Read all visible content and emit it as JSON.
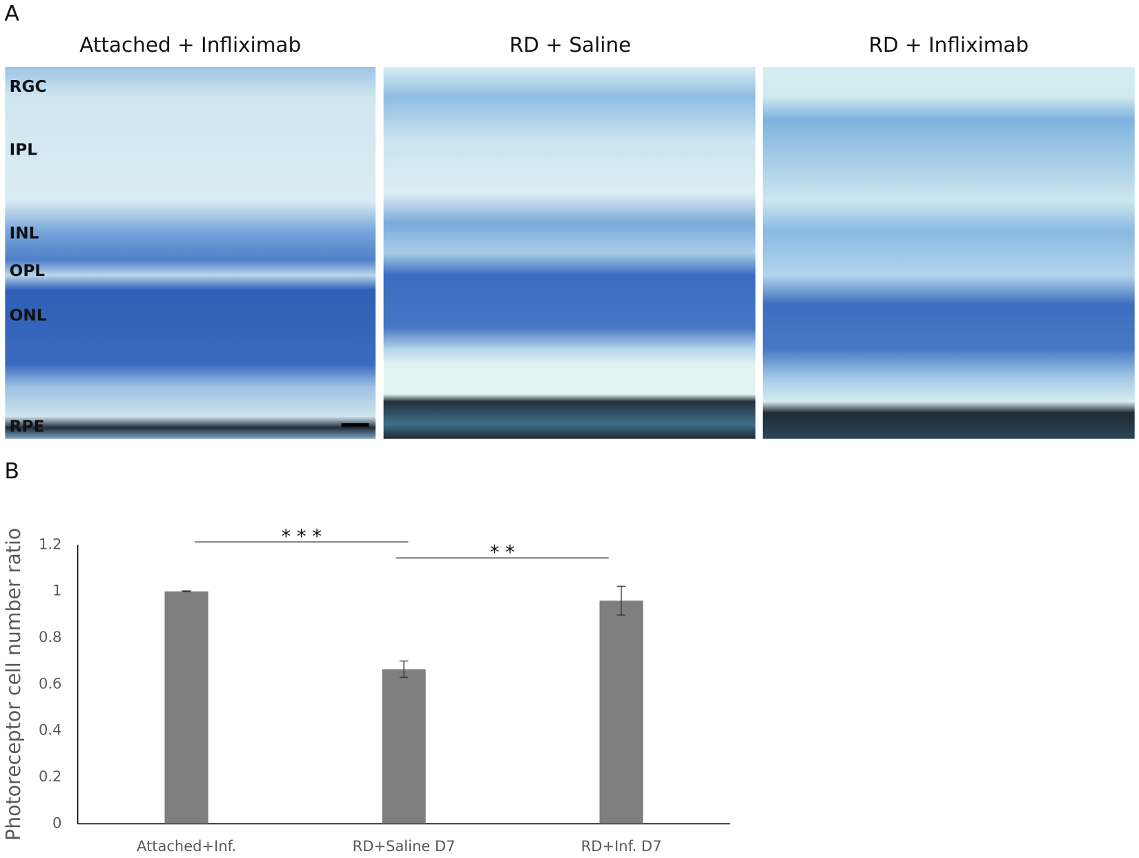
{
  "panel_a": {
    "label": "A",
    "titles": [
      "Attached + Infliximab",
      "RD + Saline",
      "RD + Infliximab"
    ],
    "layers": [
      "RGC",
      "IPL",
      "INL",
      "OPL",
      "ONL",
      "RPE"
    ]
  },
  "panel_b": {
    "label": "B"
  },
  "chart_data": {
    "type": "bar",
    "y_label": "Photoreceptor cell number ratio",
    "categories": [
      "Attached+Inf.",
      "RD+Saline D7",
      "RD+Inf. D7"
    ],
    "values": [
      1.0,
      0.665,
      0.96
    ],
    "errors": [
      0.002,
      0.035,
      0.062
    ],
    "color": "#7f7f7f",
    "ylim": [
      0,
      1.2
    ],
    "yticks": [
      0,
      0.2,
      0.4,
      0.6,
      0.8,
      1,
      1.2
    ],
    "grid": false,
    "annotations": [
      "* * *",
      "* *"
    ]
  }
}
